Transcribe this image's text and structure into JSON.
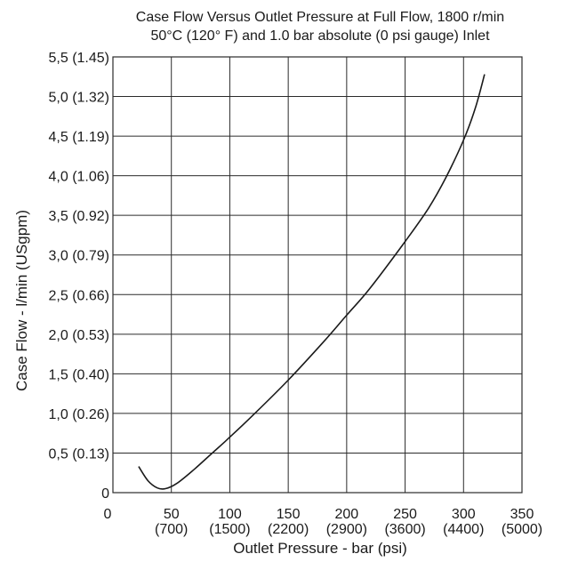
{
  "chart_data": {
    "type": "line",
    "title": "Case Flow Versus Outlet Pressure at Full Flow, 1800 r/min",
    "subtitle": "50°C (120° F) and 1.0 bar absolute (0 psi gauge) Inlet",
    "xlabel": "Outlet Pressure - bar (psi)",
    "ylabel": "Case Flow - l/min (USgpm)",
    "xlim": [
      0,
      350
    ],
    "ylim": [
      0,
      5.5
    ],
    "grid": true,
    "x_ticks": [
      {
        "value": 0,
        "label": "0",
        "sublabel": ""
      },
      {
        "value": 50,
        "label": "50",
        "sublabel": "(700)"
      },
      {
        "value": 100,
        "label": "100",
        "sublabel": "(1500)"
      },
      {
        "value": 150,
        "label": "150",
        "sublabel": "(2200)"
      },
      {
        "value": 200,
        "label": "200",
        "sublabel": "(2900)"
      },
      {
        "value": 250,
        "label": "250",
        "sublabel": "(3600)"
      },
      {
        "value": 300,
        "label": "300",
        "sublabel": "(4400)"
      },
      {
        "value": 350,
        "label": "350",
        "sublabel": "(5000)"
      }
    ],
    "y_ticks": [
      {
        "value": 0,
        "label": "0"
      },
      {
        "value": 0.5,
        "label": "0,5 (0.13)"
      },
      {
        "value": 1.0,
        "label": "1,0 (0.26)"
      },
      {
        "value": 1.5,
        "label": "1,5 (0.40)"
      },
      {
        "value": 2.0,
        "label": "2,0 (0.53)"
      },
      {
        "value": 2.5,
        "label": "2,5 (0.66)"
      },
      {
        "value": 3.0,
        "label": "3,0 (0.79)"
      },
      {
        "value": 3.5,
        "label": "3,5 (0.92)"
      },
      {
        "value": 4.0,
        "label": "4,0 (1.06)"
      },
      {
        "value": 4.5,
        "label": "4,5 (1.19)"
      },
      {
        "value": 5.0,
        "label": "5,0 (1.32)"
      },
      {
        "value": 5.5,
        "label": "5,5 (1.45)"
      }
    ],
    "series": [
      {
        "x": [
          22,
          30,
          38,
          45,
          55,
          70,
          85,
          100,
          120,
          150,
          180,
          200,
          220,
          250,
          270,
          285,
          300,
          310,
          318
        ],
        "values": [
          0.33,
          0.15,
          0.06,
          0.05,
          0.12,
          0.3,
          0.5,
          0.7,
          0.98,
          1.42,
          1.9,
          2.24,
          2.58,
          3.17,
          3.59,
          3.98,
          4.45,
          4.85,
          5.28
        ]
      }
    ]
  }
}
